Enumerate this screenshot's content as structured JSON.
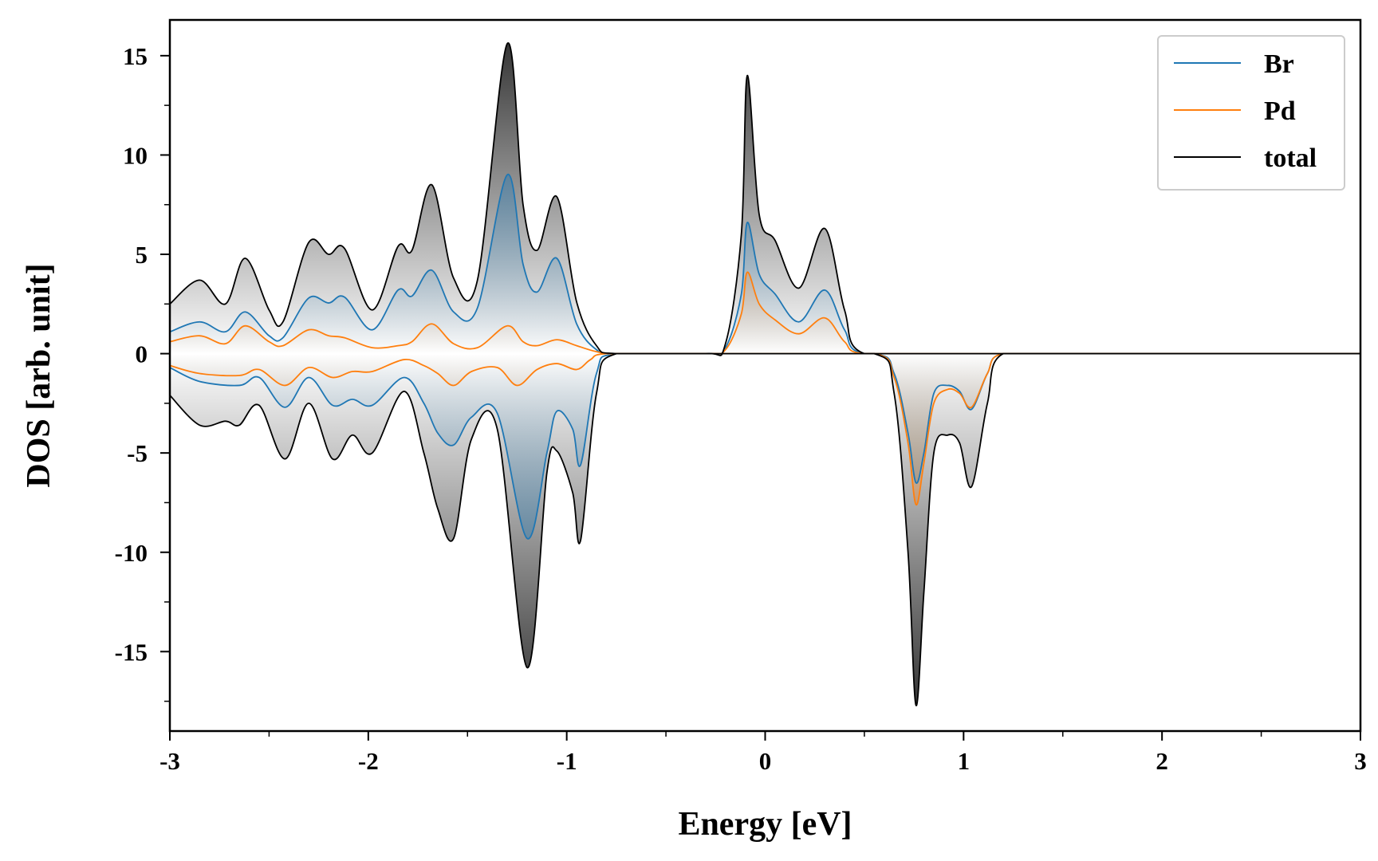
{
  "chart_data": {
    "type": "area",
    "xlabel": "Energy [eV]",
    "ylabel": "DOS [arb. unit]",
    "xlim": [
      -3,
      3
    ],
    "ylim": [
      -19,
      16.8
    ],
    "x_ticks": [
      -3,
      -2,
      -1,
      0,
      1,
      2,
      3
    ],
    "x_tick_labels": [
      "-3",
      "-2",
      "-1",
      "0",
      "1",
      "2",
      "3"
    ],
    "y_ticks": [
      -15,
      -10,
      -5,
      0,
      5,
      10,
      15
    ],
    "y_tick_labels": [
      "-15",
      "-10",
      "-5",
      "0",
      "5",
      "10",
      "15"
    ],
    "grid": false,
    "legend_position": "top-right",
    "legend": [
      "Br",
      "Pd",
      "total"
    ],
    "series": [
      {
        "name": "Br",
        "color": "#1f77b4",
        "fill": true,
        "spin_up": [
          [
            -3.0,
            1.1
          ],
          [
            -2.85,
            1.6
          ],
          [
            -2.72,
            1.1
          ],
          [
            -2.62,
            2.1
          ],
          [
            -2.5,
            0.9
          ],
          [
            -2.43,
            0.8
          ],
          [
            -2.3,
            2.8
          ],
          [
            -2.2,
            2.55
          ],
          [
            -2.12,
            2.85
          ],
          [
            -1.98,
            1.2
          ],
          [
            -1.85,
            3.2
          ],
          [
            -1.78,
            2.9
          ],
          [
            -1.68,
            4.2
          ],
          [
            -1.57,
            2.1
          ],
          [
            -1.45,
            2.3
          ],
          [
            -1.3,
            9.0
          ],
          [
            -1.22,
            4.5
          ],
          [
            -1.15,
            3.1
          ],
          [
            -1.05,
            4.8
          ],
          [
            -0.95,
            1.5
          ],
          [
            -0.85,
            0.2
          ],
          [
            -0.75,
            0.0
          ],
          [
            -0.3,
            0.0
          ],
          [
            -0.2,
            0.3
          ],
          [
            -0.12,
            3.0
          ],
          [
            -0.09,
            6.6
          ],
          [
            -0.03,
            4.0
          ],
          [
            0.05,
            3.0
          ],
          [
            0.17,
            1.6
          ],
          [
            0.3,
            3.2
          ],
          [
            0.4,
            1.2
          ],
          [
            0.5,
            0.0
          ],
          [
            3.0,
            0.0
          ]
        ],
        "spin_down": [
          [
            -3.0,
            -0.7
          ],
          [
            -2.85,
            -1.4
          ],
          [
            -2.65,
            -1.6
          ],
          [
            -2.55,
            -1.2
          ],
          [
            -2.42,
            -2.7
          ],
          [
            -2.3,
            -1.2
          ],
          [
            -2.18,
            -2.6
          ],
          [
            -2.08,
            -2.3
          ],
          [
            -1.98,
            -2.6
          ],
          [
            -1.82,
            -1.2
          ],
          [
            -1.72,
            -2.5
          ],
          [
            -1.65,
            -4.0
          ],
          [
            -1.57,
            -4.6
          ],
          [
            -1.48,
            -3.2
          ],
          [
            -1.35,
            -3.0
          ],
          [
            -1.2,
            -9.3
          ],
          [
            -1.1,
            -5.0
          ],
          [
            -1.05,
            -2.9
          ],
          [
            -0.97,
            -3.8
          ],
          [
            -0.93,
            -5.6
          ],
          [
            -0.85,
            -1.0
          ],
          [
            -0.75,
            0.0
          ],
          [
            0.55,
            0.0
          ],
          [
            0.65,
            -1.0
          ],
          [
            0.72,
            -4.0
          ],
          [
            0.76,
            -6.5
          ],
          [
            0.8,
            -5.0
          ],
          [
            0.85,
            -2.0
          ],
          [
            0.92,
            -1.6
          ],
          [
            0.98,
            -1.9
          ],
          [
            1.04,
            -2.8
          ],
          [
            1.12,
            -1.0
          ],
          [
            1.2,
            0.0
          ],
          [
            3.0,
            0.0
          ]
        ]
      },
      {
        "name": "Pd",
        "color": "#ff7f0e",
        "fill": true,
        "spin_up": [
          [
            -3.0,
            0.6
          ],
          [
            -2.85,
            0.9
          ],
          [
            -2.72,
            0.5
          ],
          [
            -2.62,
            1.4
          ],
          [
            -2.5,
            0.6
          ],
          [
            -2.43,
            0.4
          ],
          [
            -2.3,
            1.2
          ],
          [
            -2.2,
            0.9
          ],
          [
            -2.12,
            0.8
          ],
          [
            -1.98,
            0.3
          ],
          [
            -1.85,
            0.4
          ],
          [
            -1.78,
            0.6
          ],
          [
            -1.68,
            1.5
          ],
          [
            -1.57,
            0.5
          ],
          [
            -1.45,
            0.3
          ],
          [
            -1.3,
            1.4
          ],
          [
            -1.22,
            0.6
          ],
          [
            -1.15,
            0.4
          ],
          [
            -1.05,
            0.7
          ],
          [
            -0.95,
            0.4
          ],
          [
            -0.85,
            0.1
          ],
          [
            -0.75,
            0.0
          ],
          [
            -0.3,
            0.0
          ],
          [
            -0.2,
            0.2
          ],
          [
            -0.12,
            2.0
          ],
          [
            -0.09,
            4.1
          ],
          [
            -0.03,
            2.5
          ],
          [
            0.05,
            1.7
          ],
          [
            0.17,
            1.0
          ],
          [
            0.3,
            1.8
          ],
          [
            0.4,
            0.6
          ],
          [
            0.5,
            0.0
          ],
          [
            3.0,
            0.0
          ]
        ],
        "spin_down": [
          [
            -3.0,
            -0.6
          ],
          [
            -2.85,
            -1.0
          ],
          [
            -2.65,
            -1.1
          ],
          [
            -2.55,
            -0.8
          ],
          [
            -2.42,
            -1.6
          ],
          [
            -2.3,
            -0.7
          ],
          [
            -2.18,
            -1.2
          ],
          [
            -2.08,
            -0.9
          ],
          [
            -1.98,
            -0.9
          ],
          [
            -1.82,
            -0.3
          ],
          [
            -1.72,
            -0.6
          ],
          [
            -1.65,
            -1.0
          ],
          [
            -1.57,
            -1.6
          ],
          [
            -1.48,
            -0.9
          ],
          [
            -1.35,
            -0.7
          ],
          [
            -1.25,
            -1.6
          ],
          [
            -1.15,
            -0.8
          ],
          [
            -1.05,
            -0.5
          ],
          [
            -0.95,
            -0.8
          ],
          [
            -0.88,
            -0.3
          ],
          [
            -0.8,
            0.0
          ],
          [
            0.55,
            0.0
          ],
          [
            0.65,
            -1.2
          ],
          [
            0.72,
            -4.5
          ],
          [
            0.76,
            -7.6
          ],
          [
            0.8,
            -5.5
          ],
          [
            0.85,
            -2.5
          ],
          [
            0.92,
            -1.8
          ],
          [
            0.98,
            -2.0
          ],
          [
            1.04,
            -2.7
          ],
          [
            1.12,
            -1.0
          ],
          [
            1.2,
            0.0
          ],
          [
            3.0,
            0.0
          ]
        ]
      },
      {
        "name": "total",
        "color": "#000000",
        "fill": true,
        "spin_up": [
          [
            -3.0,
            2.5
          ],
          [
            -2.85,
            3.7
          ],
          [
            -2.72,
            2.5
          ],
          [
            -2.62,
            4.8
          ],
          [
            -2.5,
            2.2
          ],
          [
            -2.43,
            1.6
          ],
          [
            -2.3,
            5.6
          ],
          [
            -2.2,
            5.0
          ],
          [
            -2.12,
            5.3
          ],
          [
            -1.98,
            2.2
          ],
          [
            -1.85,
            5.4
          ],
          [
            -1.78,
            5.2
          ],
          [
            -1.68,
            8.5
          ],
          [
            -1.57,
            3.8
          ],
          [
            -1.45,
            3.7
          ],
          [
            -1.3,
            15.6
          ],
          [
            -1.22,
            7.5
          ],
          [
            -1.15,
            5.2
          ],
          [
            -1.05,
            7.9
          ],
          [
            -0.95,
            2.6
          ],
          [
            -0.85,
            0.4
          ],
          [
            -0.75,
            0.0
          ],
          [
            -0.3,
            0.0
          ],
          [
            -0.2,
            0.5
          ],
          [
            -0.12,
            6.0
          ],
          [
            -0.09,
            14.0
          ],
          [
            -0.03,
            7.0
          ],
          [
            0.05,
            5.7
          ],
          [
            0.17,
            3.3
          ],
          [
            0.3,
            6.3
          ],
          [
            0.4,
            2.2
          ],
          [
            0.5,
            0.0
          ],
          [
            3.0,
            0.0
          ]
        ],
        "spin_down": [
          [
            -3.0,
            -2.1
          ],
          [
            -2.85,
            -3.6
          ],
          [
            -2.72,
            -3.4
          ],
          [
            -2.65,
            -3.6
          ],
          [
            -2.55,
            -2.6
          ],
          [
            -2.42,
            -5.3
          ],
          [
            -2.3,
            -2.5
          ],
          [
            -2.18,
            -5.3
          ],
          [
            -2.08,
            -4.1
          ],
          [
            -1.98,
            -5.0
          ],
          [
            -1.82,
            -1.9
          ],
          [
            -1.72,
            -5.0
          ],
          [
            -1.65,
            -7.8
          ],
          [
            -1.57,
            -9.3
          ],
          [
            -1.48,
            -4.3
          ],
          [
            -1.35,
            -3.8
          ],
          [
            -1.2,
            -15.8
          ],
          [
            -1.1,
            -6.0
          ],
          [
            -1.05,
            -4.9
          ],
          [
            -0.97,
            -7.0
          ],
          [
            -0.93,
            -9.4
          ],
          [
            -0.85,
            -2.0
          ],
          [
            -0.75,
            0.0
          ],
          [
            0.55,
            0.0
          ],
          [
            0.65,
            -2.0
          ],
          [
            0.72,
            -10.0
          ],
          [
            0.76,
            -17.7
          ],
          [
            0.8,
            -12.0
          ],
          [
            0.85,
            -5.0
          ],
          [
            0.92,
            -4.1
          ],
          [
            0.98,
            -4.5
          ],
          [
            1.04,
            -6.7
          ],
          [
            1.12,
            -2.5
          ],
          [
            1.2,
            0.0
          ],
          [
            3.0,
            0.0
          ]
        ]
      }
    ]
  }
}
